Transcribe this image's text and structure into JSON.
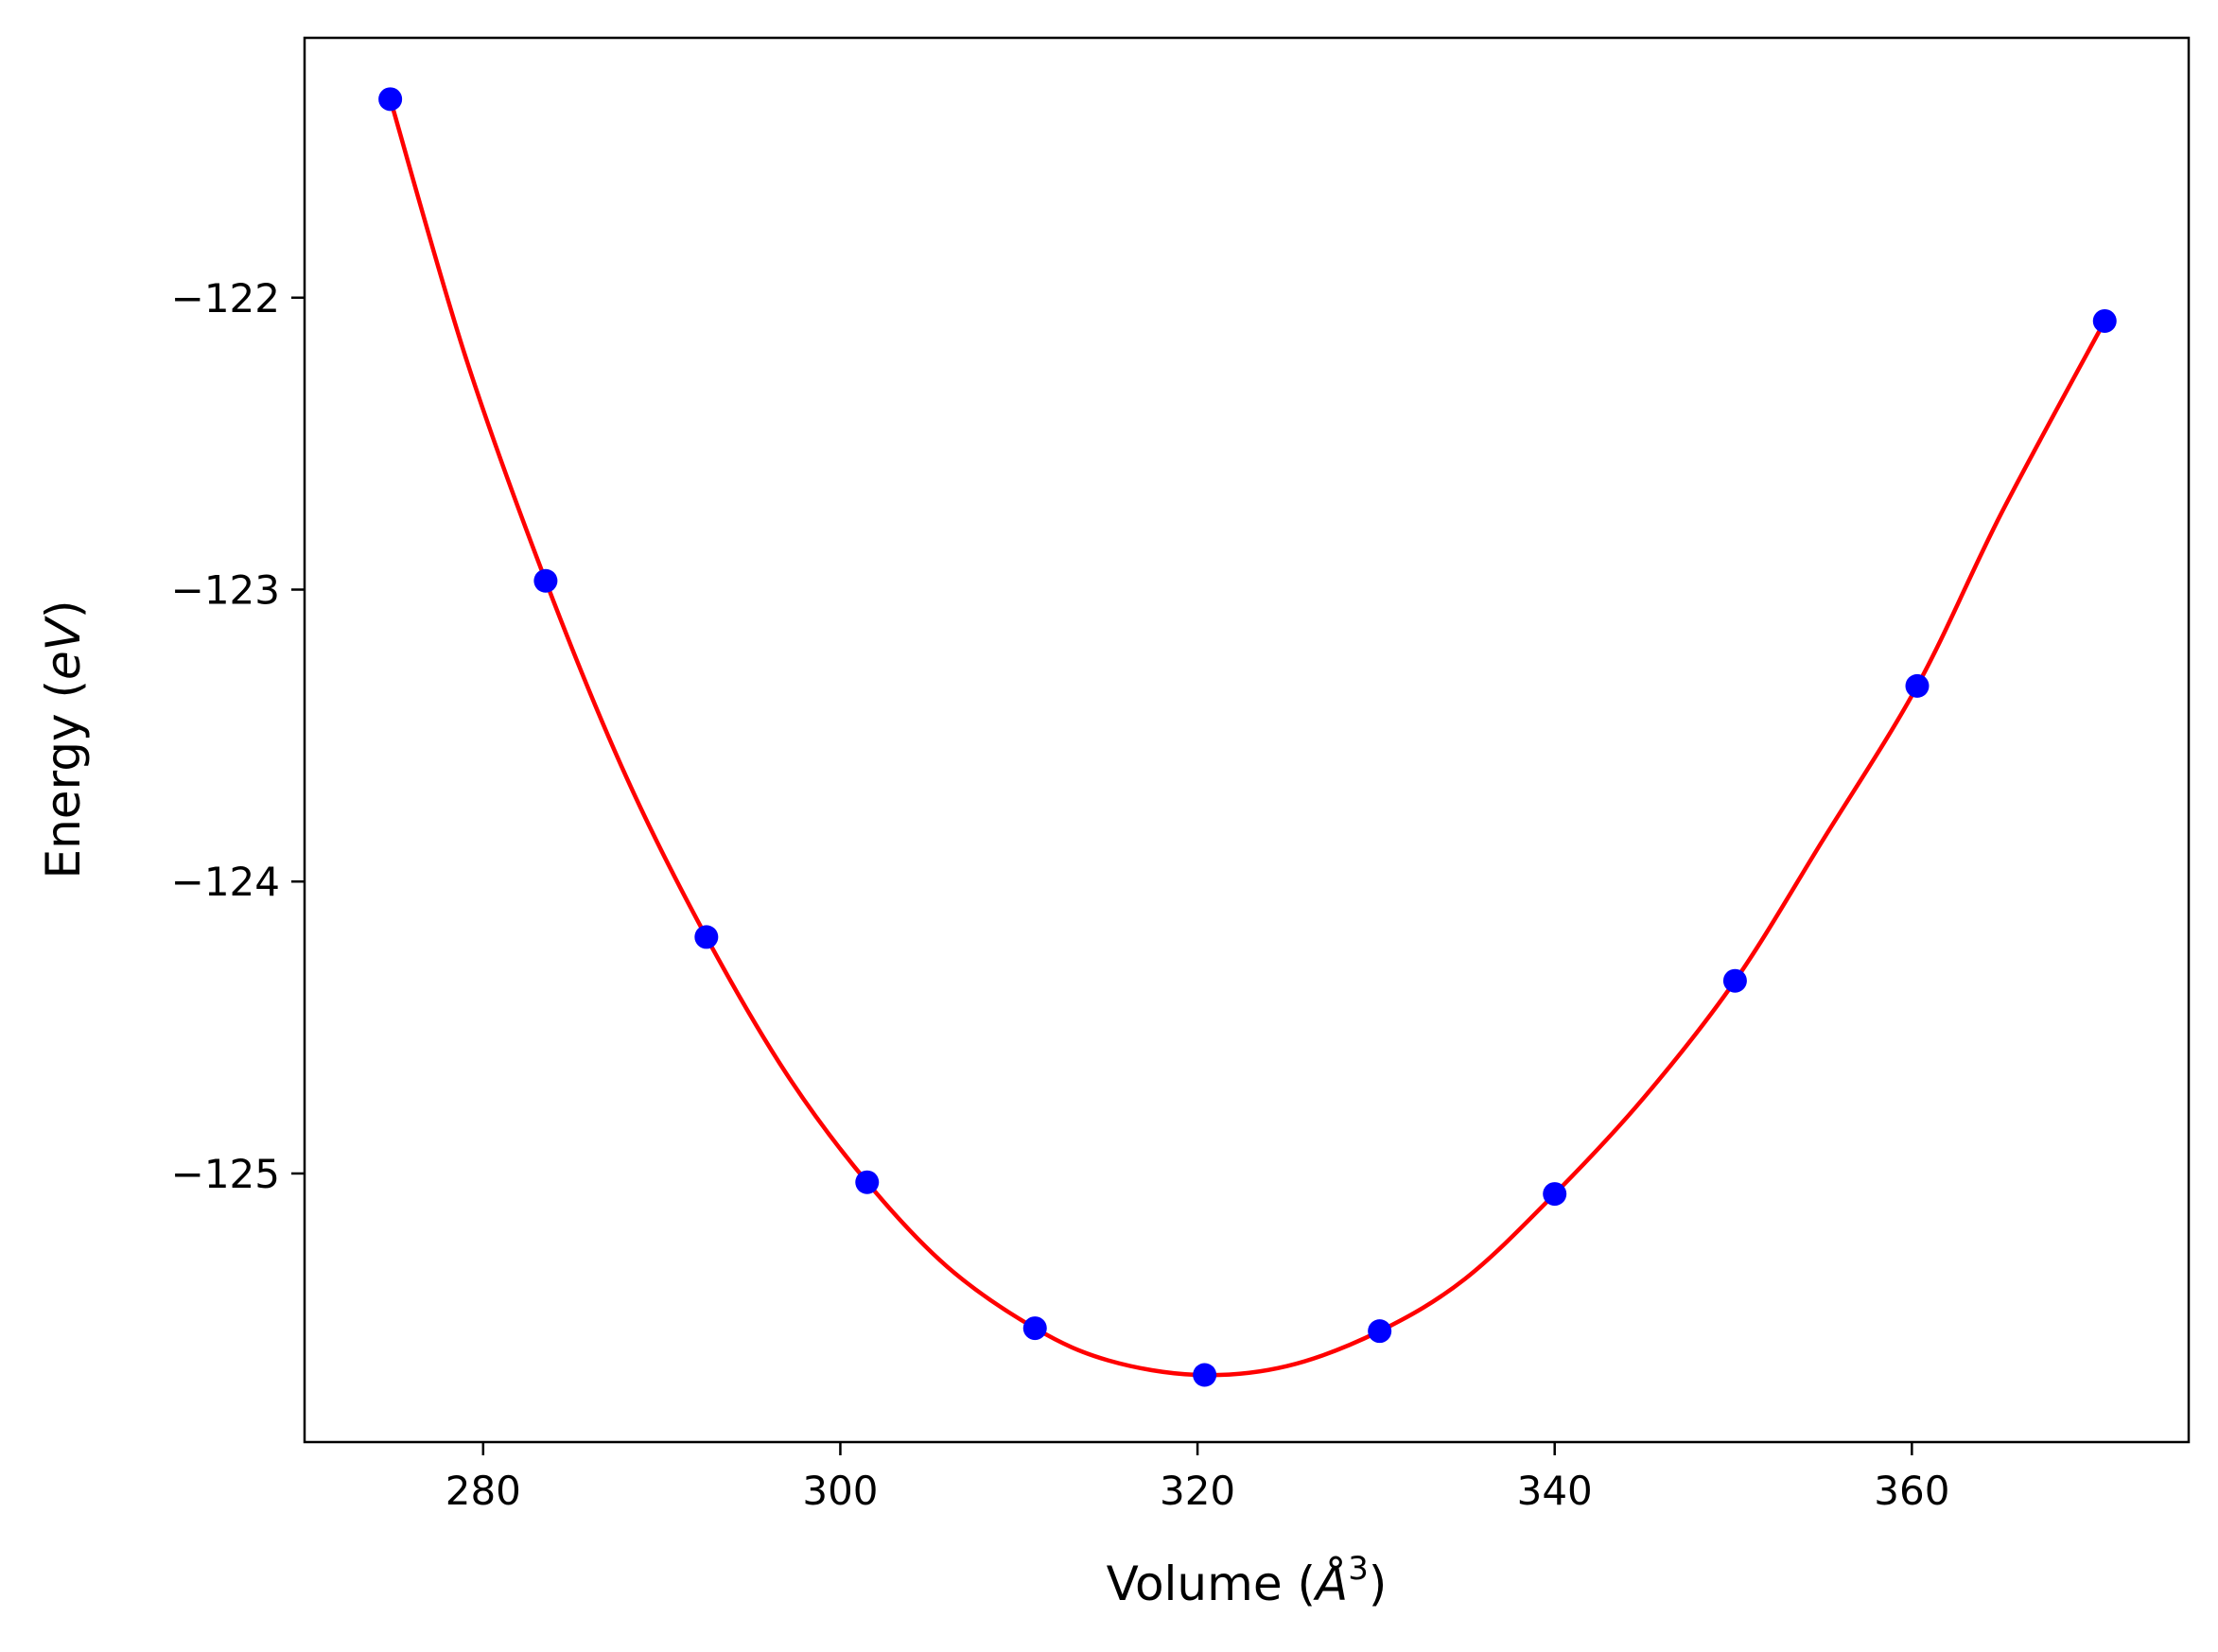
{
  "chart_data": {
    "type": "scatter",
    "title": "",
    "xlabel": {
      "prefix": "Volume (",
      "symbol": "Å",
      "sup": "3",
      "suffix": ")"
    },
    "ylabel": {
      "prefix": "Energy (",
      "symbol": "eV",
      "suffix": ")"
    },
    "xlim": [
      270,
      375.5
    ],
    "ylim": [
      -125.92,
      -121.11
    ],
    "xticks": [
      280,
      300,
      320,
      340,
      360
    ],
    "xtick_labels": [
      "280",
      "300",
      "320",
      "340",
      "360"
    ],
    "yticks": [
      -122,
      -123,
      -124,
      -125
    ],
    "ytick_labels": [
      "−122",
      "−123",
      "−124",
      "−125"
    ],
    "grid": false,
    "series": [
      {
        "kind": "points",
        "color": "#0000ff",
        "x": [
          274.8,
          283.5,
          292.5,
          301.5,
          310.9,
          320.4,
          330.2,
          340.0,
          350.1,
          360.3,
          370.8
        ],
        "y": [
          -121.32,
          -122.97,
          -124.19,
          -125.03,
          -125.53,
          -125.69,
          -125.54,
          -125.07,
          -124.34,
          -123.33,
          -122.08
        ]
      },
      {
        "kind": "fit_curve",
        "color": "#ff0000",
        "x": [
          274.8,
          279,
          283.5,
          288,
          292.5,
          297,
          301.5,
          306,
          310.9,
          315,
          320,
          325,
          330.2,
          335,
          340,
          345,
          350.1,
          355,
          360.3,
          365,
          370.8
        ],
        "y": [
          -121.32,
          -122.2,
          -122.97,
          -123.64,
          -124.19,
          -124.66,
          -125.03,
          -125.32,
          -125.53,
          -125.64,
          -125.69,
          -125.66,
          -125.54,
          -125.36,
          -125.07,
          -124.74,
          -124.34,
          -123.86,
          -123.33,
          -122.74,
          -122.08
        ]
      }
    ]
  }
}
